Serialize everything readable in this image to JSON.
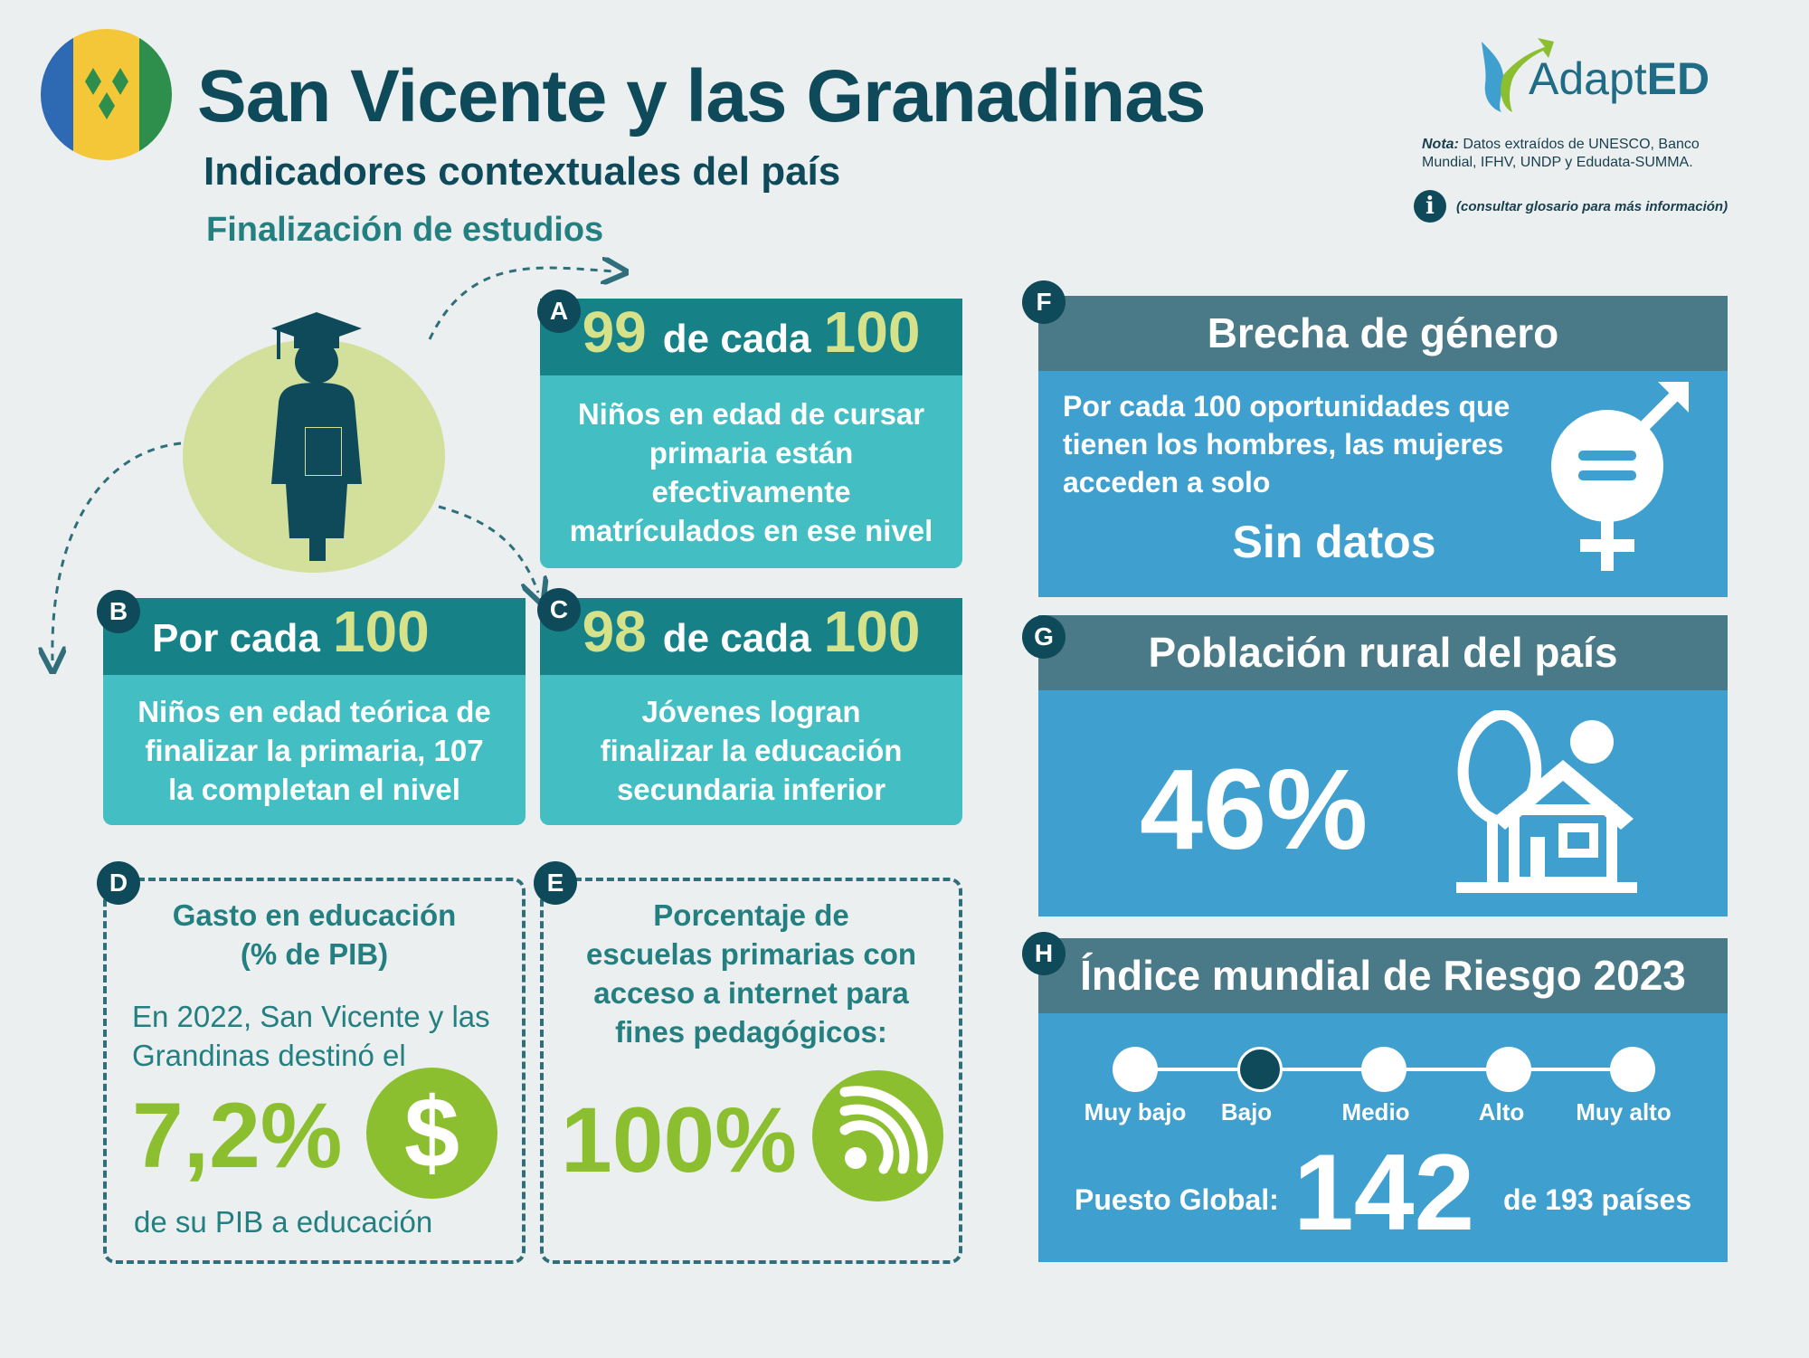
{
  "header": {
    "title": "San Vicente y las Granadinas",
    "subtitle": "Indicadores contextuales del país",
    "section": "Finalización de estudios"
  },
  "logo": {
    "name_plain": "Adapt",
    "name_bold": "ED"
  },
  "note": {
    "label": "Nota:",
    "text": "Datos extraídos de UNESCO, Banco Mundial, IFHV, UNDP y Edudata-SUMMA.",
    "info_icon_glyph": "i",
    "info_text": "(consultar glosario para más información)"
  },
  "icons": {
    "flag": "flag-icon",
    "graduate": "graduate-icon",
    "gender": "gender-equality-icon",
    "house": "rural-house-icon",
    "dollar": "dollar-icon",
    "wifi": "wifi-icon"
  },
  "colors": {
    "dark_teal": "#0f4a5a",
    "teal": "#168187",
    "light_teal": "#43bec3",
    "lime": "#d5e28a",
    "green": "#8cbf2f",
    "blue": "#3f9fcf",
    "slate": "#4a7a88"
  },
  "cards": {
    "A": {
      "badge": "A",
      "num1": "99",
      "mid": "de cada",
      "num2": "100",
      "lines": [
        "Niños en edad de cursar",
        "primaria están",
        "efectivamente",
        "matrículados en ese nivel"
      ]
    },
    "B": {
      "badge": "B",
      "prefix": "Por cada",
      "num": "100",
      "lines": [
        "Niños en edad teórica de",
        "finalizar la primaria, 107",
        "la completan el nivel"
      ]
    },
    "C": {
      "badge": "C",
      "num1": "98",
      "mid": "de cada",
      "num2": "100",
      "lines": [
        "Jóvenes logran",
        "finalizar la educación",
        "secundaria inferior"
      ]
    },
    "D": {
      "badge": "D",
      "title_lines": [
        "Gasto en educación",
        "(% de PIB)"
      ],
      "intro_lines": [
        "En 2022, San Vicente y las",
        "Grandinas destinó el"
      ],
      "value": "7,2%",
      "dollar_glyph": "$",
      "footer": "de su PIB a educación"
    },
    "E": {
      "badge": "E",
      "title_lines": [
        "Porcentaje de",
        "escuelas primarias con",
        "acceso a internet para",
        "fines pedagógicos:"
      ],
      "value": "100%"
    },
    "F": {
      "badge": "F",
      "title": "Brecha de género",
      "text_lines": [
        "Por cada 100 oportunidades que",
        "tienen los hombres, las mujeres",
        "acceden a solo"
      ],
      "value": "Sin datos"
    },
    "G": {
      "badge": "G",
      "title": "Población rural del país",
      "value": "46%"
    },
    "H": {
      "badge": "H",
      "title": "Índice mundial de Riesgo 2023",
      "levels": [
        "Muy bajo",
        "Bajo",
        "Medio",
        "Alto",
        "Muy alto"
      ],
      "active_level": "Bajo",
      "rank_label": "Puesto Global:",
      "rank": "142",
      "rank_suffix": "de 193 países"
    }
  }
}
